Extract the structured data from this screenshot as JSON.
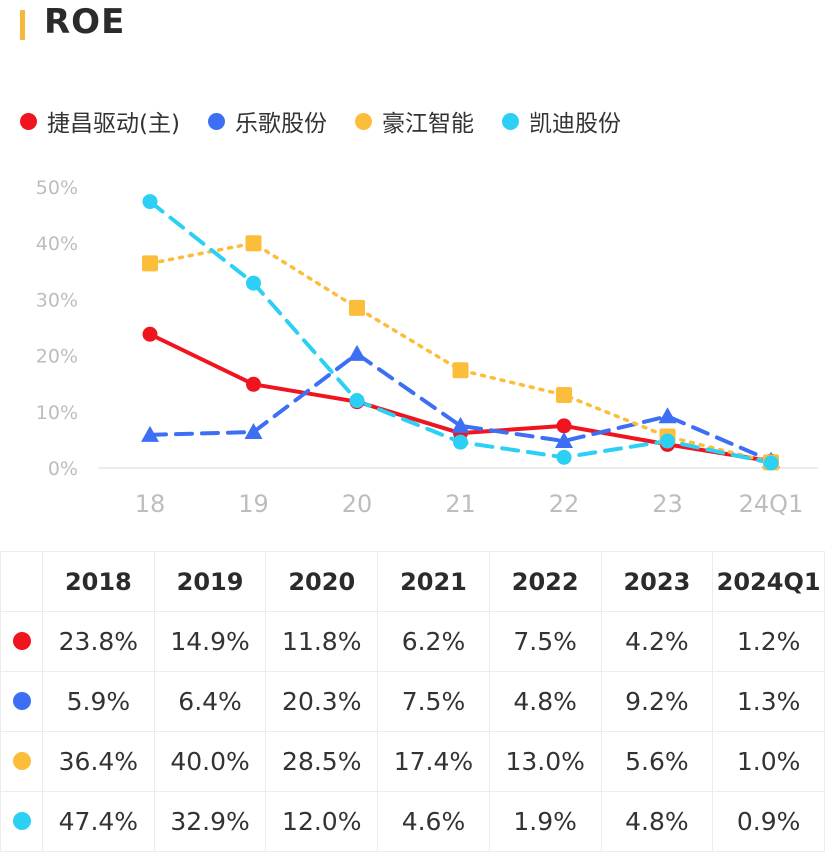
{
  "title": "ROE",
  "colors": {
    "accent": "#f5b83a"
  },
  "legend": [
    {
      "label": "捷昌驱动(主)",
      "color": "#f0141e"
    },
    {
      "label": "乐歌股份",
      "color": "#3d6ff5"
    },
    {
      "label": "豪江智能",
      "color": "#fbbd3a"
    },
    {
      "label": "凯迪股份",
      "color": "#2dd0f5"
    }
  ],
  "chart_data": {
    "type": "line",
    "title": "ROE",
    "categories": [
      "18",
      "19",
      "20",
      "21",
      "22",
      "23",
      "24Q1"
    ],
    "ylim": [
      0,
      50
    ],
    "yticks": [
      "50%",
      "40%",
      "30%",
      "20%",
      "10%",
      "0%"
    ],
    "series": [
      {
        "name": "捷昌驱动(主)",
        "color": "#f0141e",
        "style": "solid",
        "marker": "circle",
        "values": [
          23.8,
          14.9,
          11.8,
          6.2,
          7.5,
          4.2,
          1.2
        ]
      },
      {
        "name": "乐歌股份",
        "color": "#3d6ff5",
        "style": "dashed",
        "marker": "triangle",
        "values": [
          5.9,
          6.4,
          20.3,
          7.5,
          4.8,
          9.2,
          1.3
        ]
      },
      {
        "name": "豪江智能",
        "color": "#fbbd3a",
        "style": "dotted",
        "marker": "square",
        "values": [
          36.4,
          40.0,
          28.5,
          17.4,
          13.0,
          5.6,
          1.0
        ]
      },
      {
        "name": "凯迪股份",
        "color": "#2dd0f5",
        "style": "dashed",
        "marker": "circle",
        "values": [
          47.4,
          32.9,
          12.0,
          4.6,
          1.9,
          4.8,
          0.9
        ]
      }
    ]
  },
  "table": {
    "headers": [
      "2018",
      "2019",
      "2020",
      "2021",
      "2022",
      "2023",
      "2024Q1"
    ],
    "rows": [
      {
        "color": "#f0141e",
        "cells": [
          "23.8%",
          "14.9%",
          "11.8%",
          "6.2%",
          "7.5%",
          "4.2%",
          "1.2%"
        ]
      },
      {
        "color": "#3d6ff5",
        "cells": [
          "5.9%",
          "6.4%",
          "20.3%",
          "7.5%",
          "4.8%",
          "9.2%",
          "1.3%"
        ]
      },
      {
        "color": "#fbbd3a",
        "cells": [
          "36.4%",
          "40.0%",
          "28.5%",
          "17.4%",
          "13.0%",
          "5.6%",
          "1.0%"
        ]
      },
      {
        "color": "#2dd0f5",
        "cells": [
          "47.4%",
          "32.9%",
          "12.0%",
          "4.6%",
          "1.9%",
          "4.8%",
          "0.9%"
        ]
      }
    ]
  }
}
